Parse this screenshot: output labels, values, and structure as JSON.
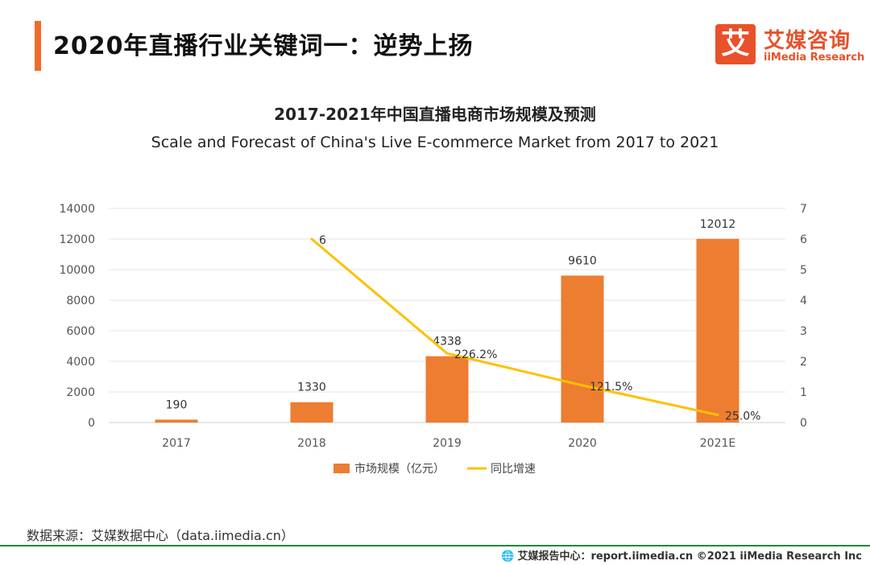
{
  "header": {
    "title": "2020年直播行业关键词一：逆势上扬"
  },
  "logo": {
    "mark": "艾",
    "cn": "艾媒咨询",
    "en": "iiMedia Research",
    "color": "#E8512A"
  },
  "chart_data": {
    "type": "bar",
    "title": "2017-2021年中国直播电商市场规模及预测",
    "subtitle": "Scale and Forecast of China's Live E-commerce Market from 2017 to 2021",
    "categories": [
      "2017",
      "2018",
      "2019",
      "2020",
      "2021E"
    ],
    "series": [
      {
        "name": "市场规模（亿元）",
        "type": "bar",
        "axis": "left",
        "color": "#ED7D31",
        "values": [
          190,
          1330,
          4338,
          9610,
          12012
        ],
        "labels": [
          "190",
          "1330",
          "4338",
          "9610",
          "12012"
        ]
      },
      {
        "name": "同比增速",
        "type": "line",
        "axis": "right",
        "color": "#FFC000",
        "values": [
          null,
          6,
          2.262,
          1.215,
          0.25
        ],
        "labels": [
          "",
          "6",
          "226.2%",
          "121.5%",
          "25.0%"
        ]
      }
    ],
    "y_left": {
      "min": 0,
      "max": 14000,
      "ticks": [
        "0",
        "2000",
        "4000",
        "6000",
        "8000",
        "10000",
        "12000",
        "14000"
      ]
    },
    "y_right": {
      "min": 0,
      "max": 7,
      "ticks": [
        "0",
        "1",
        "2",
        "3",
        "4",
        "5",
        "6",
        "7"
      ]
    },
    "grid": true,
    "legend_position": "bottom"
  },
  "source": "数据来源：艾媒数据中心（data.iimedia.cn）",
  "footer": {
    "globe_icon": "globe-icon",
    "text": "艾媒报告中心：report.iimedia.cn   ©2021  iiMedia Research  Inc"
  }
}
